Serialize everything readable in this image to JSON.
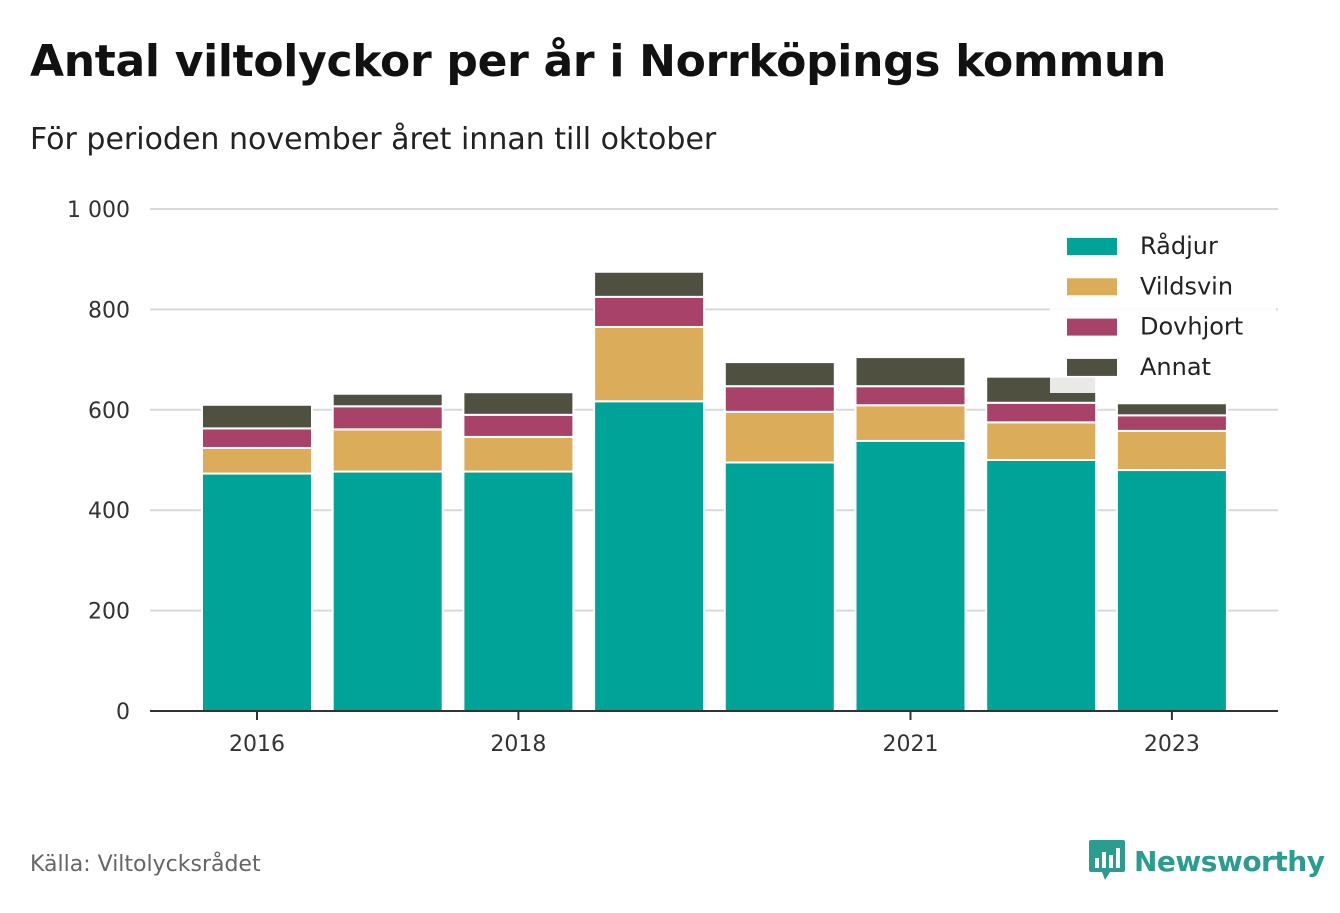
{
  "title": "Antal viltolyckor per år i Norrköpings kommun",
  "subtitle": "För perioden november året innan till oktober",
  "source": "Källa: Viltolycksrådet",
  "brand": "Newsworthy",
  "colors": {
    "radjur": "#00a398",
    "vildsvin": "#dbad5b",
    "dovhjort": "#a84268",
    "annat": "#4f5040",
    "brand": "#2a9d8f"
  },
  "chart_data": {
    "type": "bar",
    "stacked": true,
    "categories": [
      "2016",
      "2017",
      "2018",
      "2019",
      "2020",
      "2021",
      "2022",
      "2023"
    ],
    "x_tick_labels": [
      "2016",
      "",
      "2018",
      "",
      "",
      "2021",
      "",
      "2023"
    ],
    "y_ticks": [
      0,
      200,
      400,
      600,
      800,
      1000
    ],
    "y_tick_labels": [
      "0",
      "200",
      "400",
      "600",
      "800",
      "1 000"
    ],
    "ylim": [
      0,
      1000
    ],
    "grid": true,
    "legend_position": "top-right",
    "series": [
      {
        "name": "Rådjur",
        "color": "#00a398",
        "values": [
          473,
          477,
          477,
          617,
          495,
          538,
          500,
          480
        ]
      },
      {
        "name": "Vildsvin",
        "color": "#dbad5b",
        "values": [
          51,
          84,
          69,
          148,
          101,
          71,
          75,
          78
        ]
      },
      {
        "name": "Dovhjort",
        "color": "#a84268",
        "values": [
          39,
          46,
          44,
          60,
          51,
          38,
          39,
          31
        ]
      },
      {
        "name": "Annat",
        "color": "#4f5040",
        "values": [
          47,
          25,
          45,
          50,
          48,
          58,
          52,
          24
        ]
      }
    ]
  }
}
